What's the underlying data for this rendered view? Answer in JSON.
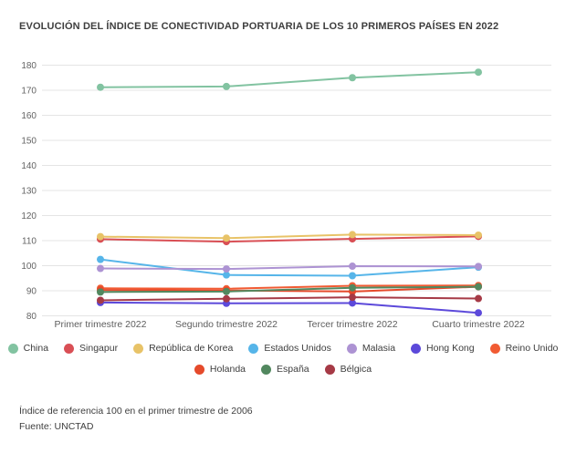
{
  "chart_data": {
    "type": "line",
    "title": "EVOLUCIÓN DEL ÍNDICE DE CONECTIVIDAD PORTUARIA DE LOS 10 PRIMEROS PAÍSES EN 2022",
    "xlabel": "",
    "ylabel": "",
    "ylim": [
      80,
      180
    ],
    "y_ticks": [
      180,
      170,
      160,
      150,
      140,
      130,
      120,
      110,
      100,
      90,
      80
    ],
    "grid": "horizontal",
    "legend_position": "bottom",
    "categories": [
      "Primer trimestre 2022",
      "Segundo trimestre 2022",
      "Tercer trimestre 2022",
      "Cuarto trimestre 2022"
    ],
    "series": [
      {
        "name": "China",
        "color": "#82c3a1",
        "values": [
          171.2,
          171.5,
          175.0,
          177.2
        ]
      },
      {
        "name": "Singapur",
        "color": "#d94f55",
        "values": [
          110.6,
          109.6,
          110.7,
          111.7
        ]
      },
      {
        "name": "República de Korea",
        "color": "#e8c368",
        "values": [
          111.6,
          111.0,
          112.4,
          112.2
        ]
      },
      {
        "name": "Estados Unidos",
        "color": "#56b5e9",
        "values": [
          102.5,
          96.3,
          96.0,
          99.4
        ]
      },
      {
        "name": "Malasia",
        "color": "#ad93d3",
        "values": [
          98.9,
          98.7,
          99.8,
          99.7
        ]
      },
      {
        "name": "Hong Kong",
        "color": "#5c49da",
        "values": [
          85.3,
          85.0,
          85.1,
          81.2
        ]
      },
      {
        "name": "Reino Unido",
        "color": "#f15b33",
        "values": [
          91.0,
          90.8,
          92.0,
          92.1
        ]
      },
      {
        "name": "Holanda",
        "color": "#e54a2b",
        "values": [
          90.3,
          90.1,
          89.7,
          91.6
        ]
      },
      {
        "name": "España",
        "color": "#52885f",
        "values": [
          89.5,
          89.7,
          91.2,
          91.6
        ]
      },
      {
        "name": "Bélgica",
        "color": "#a63a46",
        "values": [
          86.2,
          86.8,
          87.4,
          86.9
        ]
      }
    ],
    "legend_rows": [
      [
        "China",
        "Singapur",
        "República de Korea",
        "Estados Unidos",
        "Malasia",
        "Hong Kong",
        "Reino Unido"
      ],
      [
        "Holanda",
        "España",
        "Bélgica"
      ]
    ]
  },
  "footer": {
    "reference_note": "Índice de referencia 100 en el primer trimestre de 2006",
    "source": "Fuente: UNCTAD"
  }
}
